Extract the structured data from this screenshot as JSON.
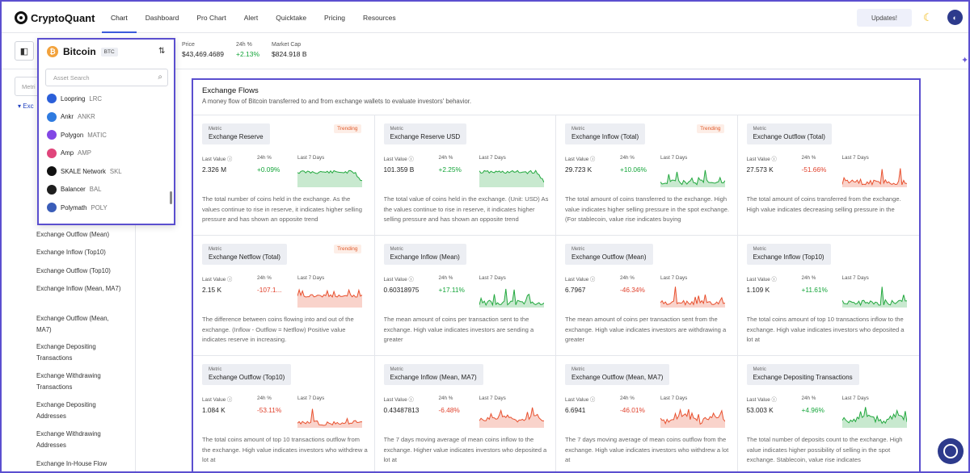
{
  "nav": {
    "brand": "CryptoQuant",
    "items": [
      "Chart",
      "Dashboard",
      "Pro Chart",
      "Alert",
      "Quicktake",
      "Pricing",
      "Resources"
    ],
    "updates": "Updates!"
  },
  "stats": [
    {
      "label": "Price",
      "value": "$43,469.4689"
    },
    {
      "label": "24h %",
      "value": "+2.13%"
    },
    {
      "label": "Market Cap",
      "value": "$824.918 B"
    }
  ],
  "sidebar": {
    "search_placeholder": "Metri",
    "tree_label": "Exc",
    "items": [
      "Exchange Outflow (Mean)",
      "Exchange Inflow (Top10)",
      "Exchange Outflow (Top10)",
      "Exchange Inflow (Mean, MA7)",
      "Exchange Outflow (Mean, MA7)",
      "Exchange Depositing Transactions",
      "Exchange Withdrawing Transactions",
      "Exchange Depositing Addresses",
      "Exchange Withdrawing Addresses",
      "Exchange In-House Flow (Total)"
    ]
  },
  "dropdown": {
    "title": "Bitcoin",
    "badge": "BTC",
    "search_placeholder": "Asset Search",
    "coins": [
      {
        "name": "Loopring",
        "sym": "LRC",
        "color": "#2b5fd9"
      },
      {
        "name": "Ankr",
        "sym": "ANKR",
        "color": "#2f7be0"
      },
      {
        "name": "Polygon",
        "sym": "MATIC",
        "color": "#8247e5"
      },
      {
        "name": "Amp",
        "sym": "AMP",
        "color": "#e0457b"
      },
      {
        "name": "SKALE Network",
        "sym": "SKL",
        "color": "#111111"
      },
      {
        "name": "Balancer",
        "sym": "BAL",
        "color": "#1e1e1e"
      },
      {
        "name": "Polymath",
        "sym": "POLY",
        "color": "#3a5db8"
      }
    ]
  },
  "panel": {
    "title": "Exchange Flows",
    "subtitle": "A money flow of Bitcoin transferred to and from exchange wallets to evaluate investors' behavior."
  },
  "labels": {
    "metric": "Metric",
    "last": "Last Value",
    "h24": "24h %",
    "l7": "Last 7 Days",
    "trending": "Trending"
  },
  "cards": [
    {
      "name": "Exchange Reserve",
      "value": "2.326 M",
      "change": "+0.09%",
      "dir": "pos",
      "trending": true,
      "chart": "area",
      "desc": "The total number of coins held in the exchange. As the values continue to rise in reserve, it indicates higher selling pressure and has shown an opposite trend"
    },
    {
      "name": "Exchange Reserve USD",
      "value": "101.359 B",
      "change": "+2.25%",
      "dir": "pos",
      "trending": false,
      "chart": "area",
      "desc": "The total value of coins held in the exchange. (Unit: USD) As the values continue to rise in reserve, it indicates higher selling pressure and has shown an opposite trend"
    },
    {
      "name": "Exchange Inflow (Total)",
      "value": "29.723 K",
      "change": "+10.06%",
      "dir": "pos",
      "trending": true,
      "chart": "spike",
      "desc": "The total amount of coins transferred to the exchange. High value indicates higher selling pressure in the spot exchange. (For stablecoin, value rise indicates buying"
    },
    {
      "name": "Exchange Outflow (Total)",
      "value": "27.573 K",
      "change": "-51.66%",
      "dir": "neg",
      "trending": false,
      "chart": "spike",
      "desc": "The total amount of coins transferred from the exchange. High value indicates decreasing selling pressure in the"
    },
    {
      "name": "Exchange Netflow (Total)",
      "value": "2.15 K",
      "change": "-107.1...",
      "dir": "neg",
      "trending": true,
      "chart": "flat",
      "desc": "The difference between coins flowing into and out of the exchange. (Inflow - Outflow = Netflow) Positive value indicates reserve in increasing."
    },
    {
      "name": "Exchange Inflow (Mean)",
      "value": "0.60318975",
      "change": "+17.11%",
      "dir": "pos",
      "trending": false,
      "chart": "spike",
      "desc": "The mean amount of coins per transaction sent to the exchange. High value indicates investors are sending a greater"
    },
    {
      "name": "Exchange Outflow (Mean)",
      "value": "6.7967",
      "change": "-46.34%",
      "dir": "neg",
      "trending": false,
      "chart": "spike",
      "desc": "The mean amount of coins per transaction sent from the exchange. High value indicates investors are withdrawing a greater"
    },
    {
      "name": "Exchange Inflow (Top10)",
      "value": "1.109 K",
      "change": "+11.61%",
      "dir": "pos",
      "trending": false,
      "chart": "spike",
      "desc": "The total coins amount of top 10 transactions inflow to the exchange. High value indicates investors who deposited a lot at"
    },
    {
      "name": "Exchange Outflow (Top10)",
      "value": "1.084 K",
      "change": "-53.11%",
      "dir": "neg",
      "trending": false,
      "chart": "spike",
      "desc": "The total coins amount of top 10 transactions outflow from the exchange. High value indicates investors who withdrew a lot at"
    },
    {
      "name": "Exchange Inflow (Mean, MA7)",
      "value": "0.43487813",
      "change": "-6.48%",
      "dir": "neg",
      "trending": false,
      "chart": "wave",
      "desc": "The 7 days moving average of mean coins inflow to the exchange. Higher value indicates investors who deposited a lot at"
    },
    {
      "name": "Exchange Outflow (Mean, MA7)",
      "value": "6.6941",
      "change": "-46.01%",
      "dir": "neg",
      "trending": false,
      "chart": "wave",
      "desc": "The 7 days moving average of mean coins outflow from the exchange. High value indicates investors who withdrew a lot at"
    },
    {
      "name": "Exchange Depositing Transactions",
      "value": "53.003 K",
      "change": "+4.96%",
      "dir": "pos",
      "trending": false,
      "chart": "wave",
      "desc": "The total number of deposits count to the exchange. High value indicates higher possibility of selling in the spot exchange. Stablecoin, value rise indicates"
    }
  ]
}
